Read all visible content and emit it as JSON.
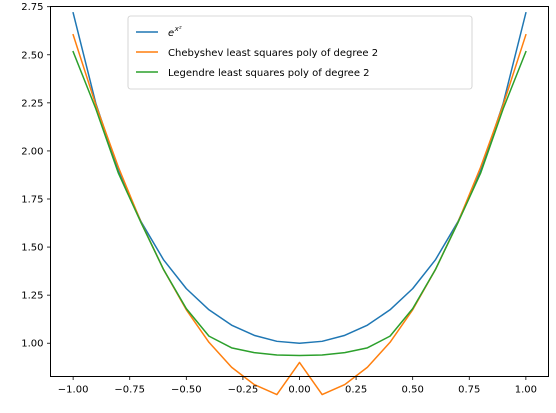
{
  "chart_data": {
    "type": "line",
    "xlim": [
      -1.1,
      1.1
    ],
    "ylim": [
      0.827,
      2.751
    ],
    "x_ticks": [
      -1.0,
      -0.75,
      -0.5,
      -0.25,
      0.0,
      0.25,
      0.5,
      0.75,
      1.0
    ],
    "x_tick_labels": [
      "−1.00",
      "−0.75",
      "−0.50",
      "−0.25",
      "0.00",
      "0.25",
      "0.50",
      "0.75",
      "1.00"
    ],
    "y_ticks": [
      1.0,
      1.25,
      1.5,
      1.75,
      2.0,
      2.25,
      2.5,
      2.75
    ],
    "y_tick_labels": [
      "1.00",
      "1.25",
      "1.50",
      "1.75",
      "2.00",
      "2.25",
      "2.50",
      "2.75"
    ],
    "grid": false,
    "legend_position": "upper-center",
    "series": [
      {
        "name_base": "e",
        "name_sup": "x²",
        "color": "#1f77b4",
        "x": [
          -1.0,
          -0.9,
          -0.8,
          -0.7,
          -0.6,
          -0.5,
          -0.4,
          -0.3,
          -0.2,
          -0.1,
          0.0,
          0.1,
          0.2,
          0.3,
          0.4,
          0.5,
          0.6,
          0.7,
          0.8,
          0.9,
          1.0
        ],
        "y": [
          2.718,
          2.248,
          1.896,
          1.632,
          1.433,
          1.284,
          1.174,
          1.094,
          1.041,
          1.01,
          1.0,
          1.01,
          1.041,
          1.094,
          1.174,
          1.284,
          1.433,
          1.632,
          1.896,
          2.248,
          2.718
        ]
      },
      {
        "name": "Chebyshev least squares poly of degree 2",
        "color": "#ff7f0e",
        "x": [
          -1.0,
          -0.9,
          -0.8,
          -0.7,
          -0.6,
          -0.5,
          -0.4,
          -0.3,
          -0.2,
          -0.1,
          0.0,
          0.1,
          0.2,
          0.3,
          0.4,
          0.5,
          0.6,
          0.7,
          0.8,
          0.9,
          1.0
        ],
        "y": [
          2.604,
          2.24,
          1.915,
          1.629,
          1.382,
          1.174,
          1.005,
          0.875,
          0.785,
          0.733,
          0.9,
          0.733,
          0.785,
          0.875,
          1.005,
          1.174,
          1.382,
          1.629,
          1.915,
          2.24,
          2.604
        ]
      },
      {
        "name": "Legendre least squares poly of degree 2",
        "color": "#2ca02c",
        "x": [
          -1.0,
          -0.9,
          -0.8,
          -0.7,
          -0.6,
          -0.5,
          -0.4,
          -0.3,
          -0.2,
          -0.1,
          0.0,
          0.1,
          0.2,
          0.3,
          0.4,
          0.5,
          0.6,
          0.7,
          0.8,
          0.9,
          1.0
        ],
        "y": [
          2.516,
          2.22,
          1.884,
          1.627,
          1.382,
          1.18,
          1.037,
          0.976,
          0.951,
          0.939,
          0.936,
          0.939,
          0.951,
          0.976,
          1.037,
          1.18,
          1.382,
          1.627,
          1.884,
          2.22,
          2.516
        ]
      }
    ]
  }
}
